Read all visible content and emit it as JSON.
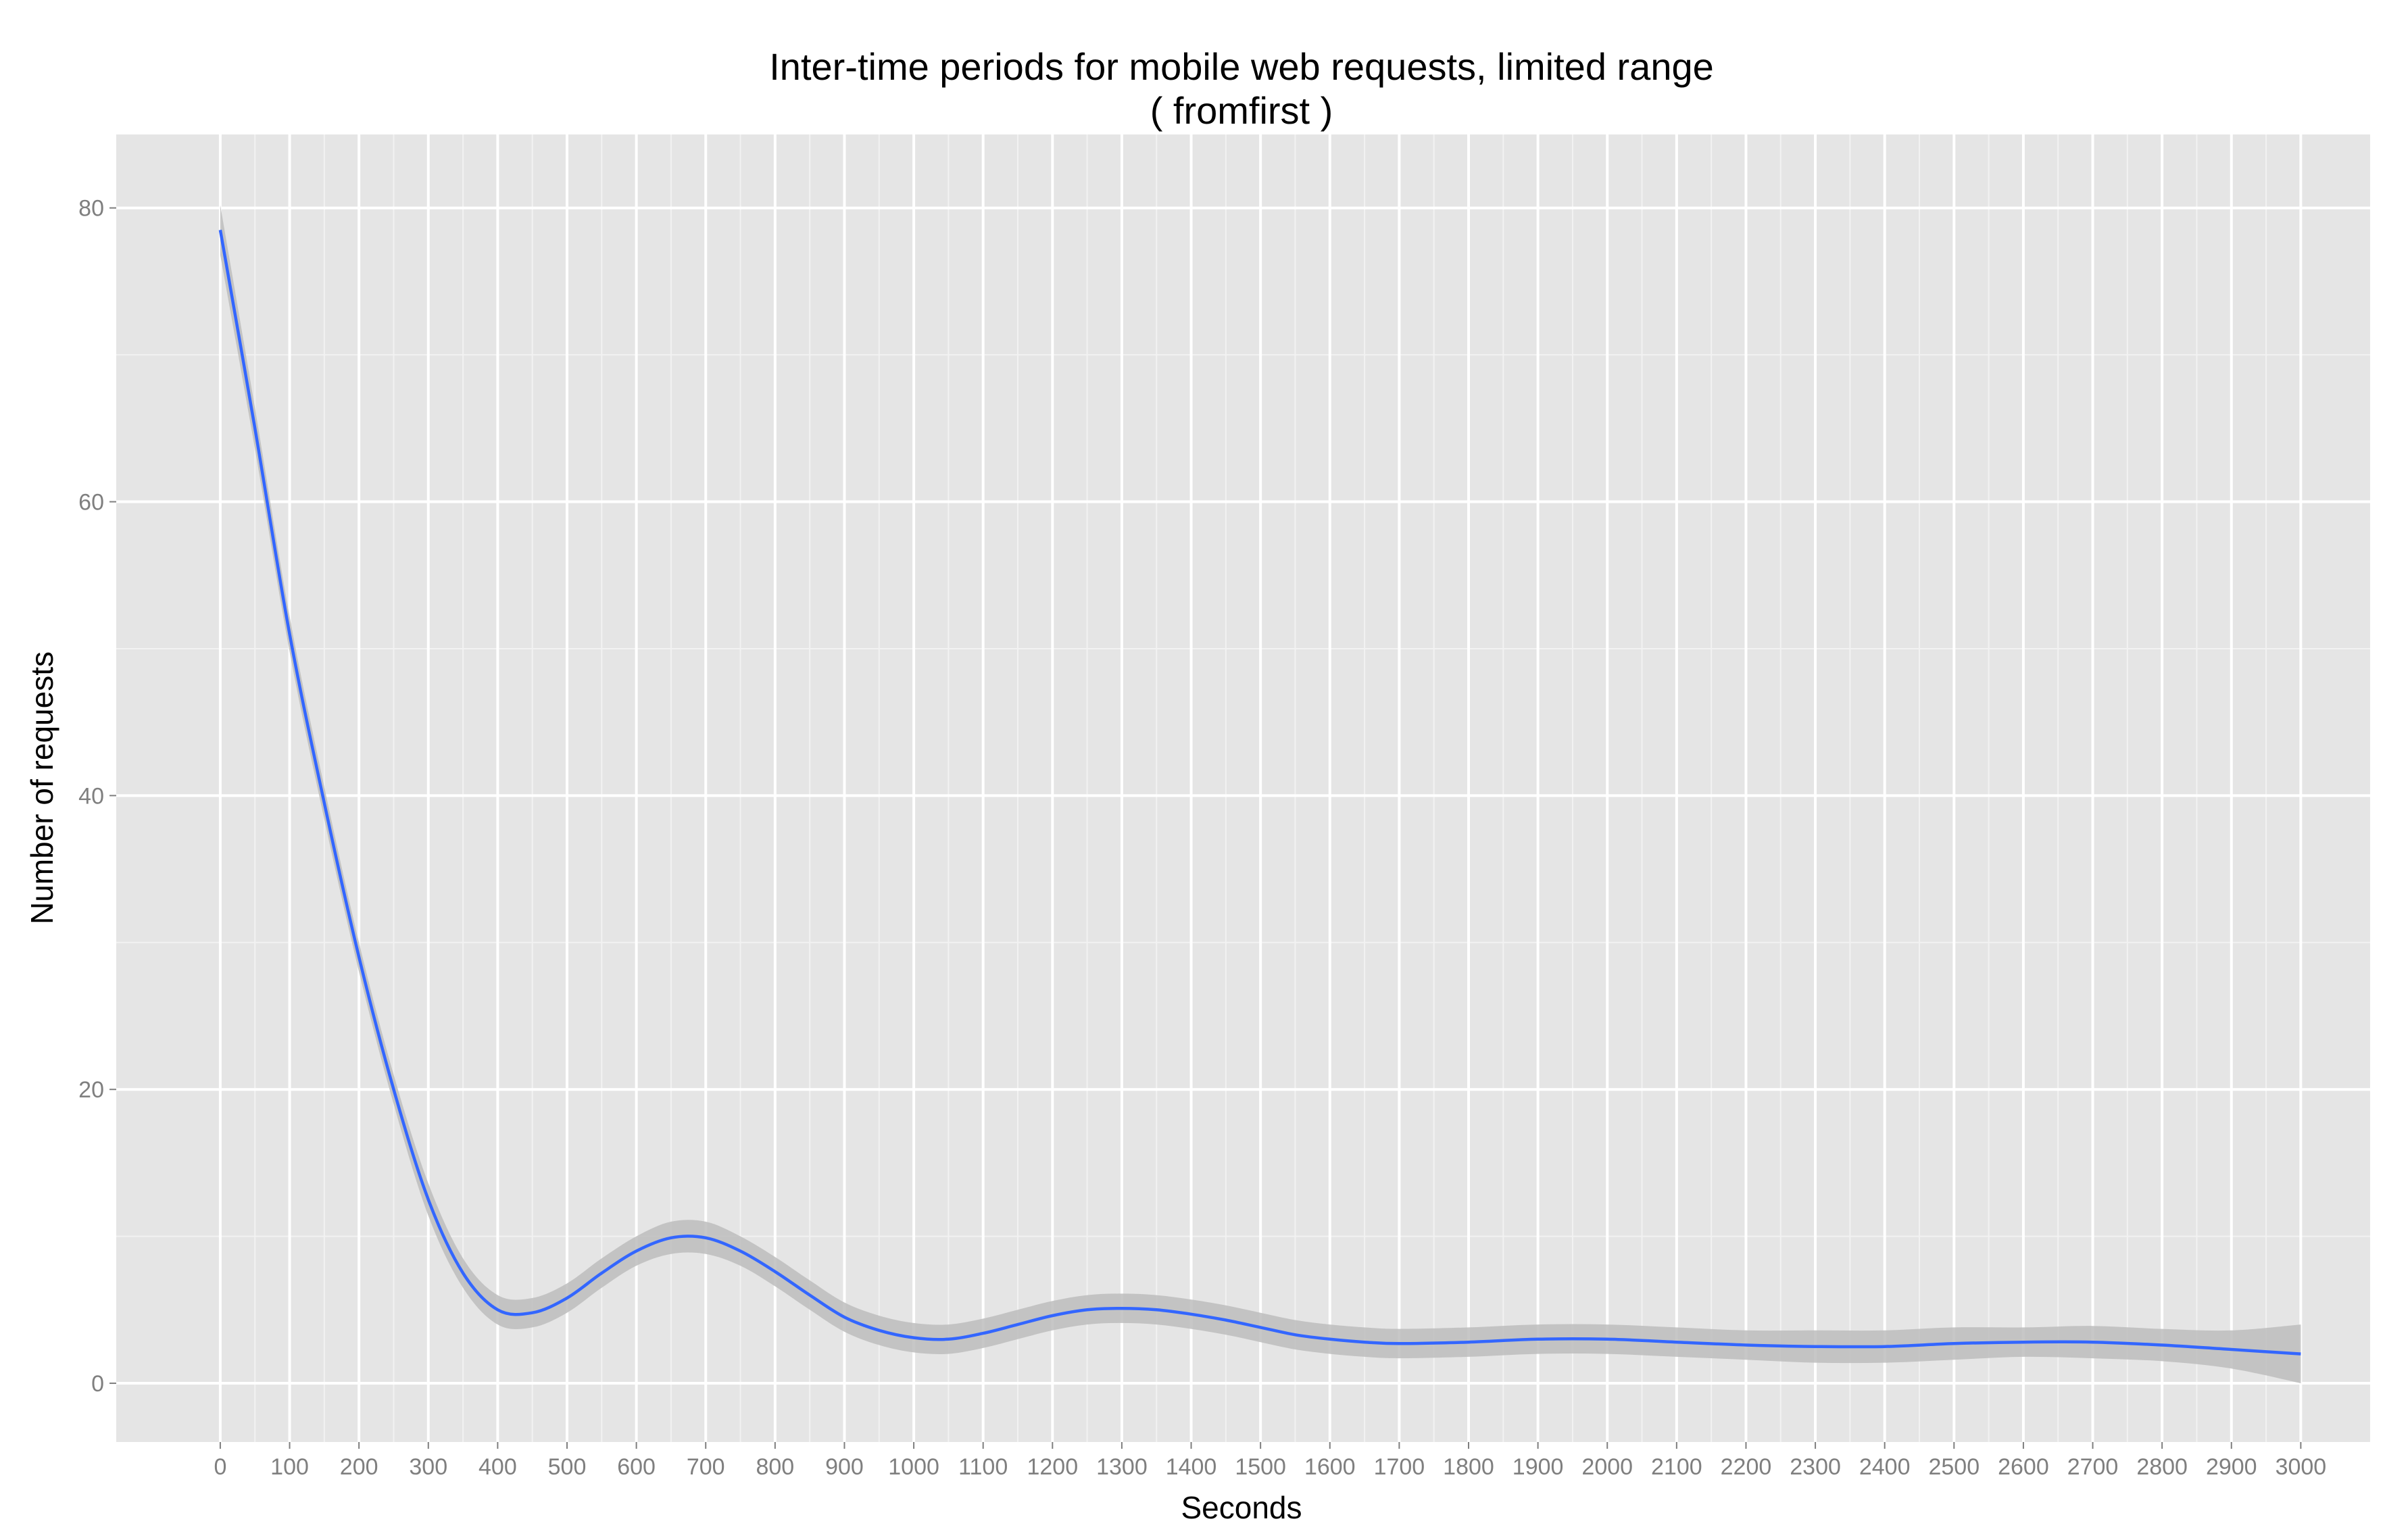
{
  "chart_data": {
    "type": "line",
    "title": "Inter-time periods for mobile web requests, limited range",
    "subtitle": "( fromfirst )",
    "xlabel": "Seconds",
    "ylabel": "Number of requests",
    "xlim": [
      -150,
      3100
    ],
    "ylim": [
      -4,
      85
    ],
    "x_ticks": [
      0,
      100,
      200,
      300,
      400,
      500,
      600,
      700,
      800,
      900,
      1000,
      1100,
      1200,
      1300,
      1400,
      1500,
      1600,
      1700,
      1800,
      1900,
      2000,
      2100,
      2200,
      2300,
      2400,
      2500,
      2600,
      2700,
      2800,
      2900,
      3000
    ],
    "y_ticks": [
      0,
      20,
      40,
      60,
      80
    ],
    "grid": true,
    "line_color": "#3366FF",
    "band_color": "#BDBDBD",
    "panel_color": "#E5E5E5",
    "series": [
      {
        "x": [
          0,
          50,
          100,
          150,
          200,
          250,
          300,
          350,
          400,
          450,
          500,
          550,
          600,
          650,
          700,
          750,
          800,
          850,
          900,
          950,
          1000,
          1050,
          1100,
          1150,
          1200,
          1250,
          1300,
          1350,
          1400,
          1450,
          1500,
          1550,
          1600,
          1650,
          1700,
          1800,
          1900,
          2000,
          2100,
          2200,
          2300,
          2400,
          2500,
          2600,
          2700,
          2800,
          2900,
          3000
        ],
        "y": [
          78.5,
          65.0,
          51.0,
          39.5,
          29.0,
          20.0,
          12.5,
          7.5,
          5.0,
          4.8,
          5.8,
          7.5,
          9.0,
          9.9,
          9.9,
          9.0,
          7.6,
          6.0,
          4.5,
          3.6,
          3.1,
          3.0,
          3.4,
          4.0,
          4.6,
          5.0,
          5.1,
          5.0,
          4.7,
          4.3,
          3.8,
          3.3,
          3.0,
          2.8,
          2.7,
          2.8,
          3.0,
          3.0,
          2.8,
          2.6,
          2.5,
          2.5,
          2.7,
          2.8,
          2.8,
          2.6,
          2.3,
          2.0
        ],
        "lower": [
          76.8,
          63.6,
          49.8,
          38.4,
          28.0,
          19.0,
          11.4,
          6.5,
          4.0,
          3.8,
          4.8,
          6.5,
          8.0,
          8.8,
          8.8,
          8.0,
          6.6,
          5.0,
          3.5,
          2.6,
          2.1,
          2.0,
          2.4,
          3.0,
          3.6,
          4.0,
          4.1,
          4.0,
          3.7,
          3.3,
          2.8,
          2.3,
          2.0,
          1.8,
          1.7,
          1.8,
          2.0,
          2.0,
          1.8,
          1.6,
          1.4,
          1.4,
          1.6,
          1.8,
          1.7,
          1.5,
          1.0,
          0.0
        ],
        "upper": [
          80.2,
          66.4,
          52.2,
          40.6,
          30.0,
          21.0,
          13.6,
          8.5,
          6.0,
          5.8,
          6.8,
          8.5,
          10.0,
          11.0,
          11.0,
          10.0,
          8.6,
          7.0,
          5.5,
          4.6,
          4.1,
          4.0,
          4.4,
          5.0,
          5.6,
          6.0,
          6.1,
          6.0,
          5.7,
          5.3,
          4.8,
          4.3,
          4.0,
          3.8,
          3.7,
          3.8,
          4.0,
          4.0,
          3.8,
          3.6,
          3.6,
          3.6,
          3.8,
          3.8,
          3.9,
          3.7,
          3.6,
          4.0
        ]
      }
    ]
  }
}
